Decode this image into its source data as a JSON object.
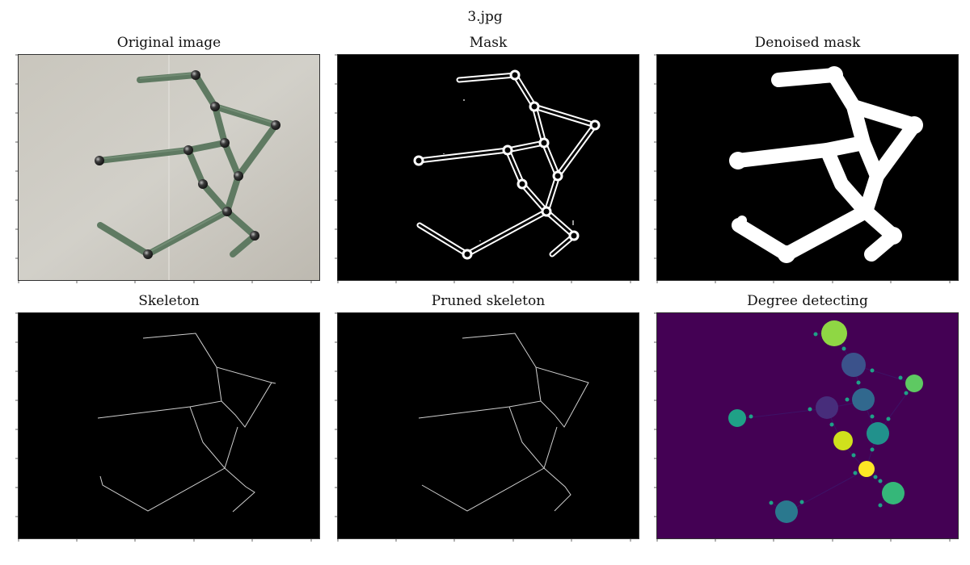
{
  "figure": {
    "title": "3.jpg"
  },
  "panels": [
    {
      "title": "Original image"
    },
    {
      "title": "Mask"
    },
    {
      "title": "Denoised mask"
    },
    {
      "title": "Skeleton"
    },
    {
      "title": "Pruned skeleton"
    },
    {
      "title": "Degree detecting"
    }
  ],
  "colors": {
    "background_photo": "#cfcdc6",
    "rod_green": "#5f7a62",
    "ball_dark": "#2a2a2a",
    "mask_white": "#ffffff",
    "mask_black": "#000000",
    "viridis_dark": "#440154",
    "viridis_blue": "#3b528b",
    "viridis_teal": "#21908c",
    "viridis_green": "#5ec962",
    "viridis_yellow": "#fde725"
  }
}
